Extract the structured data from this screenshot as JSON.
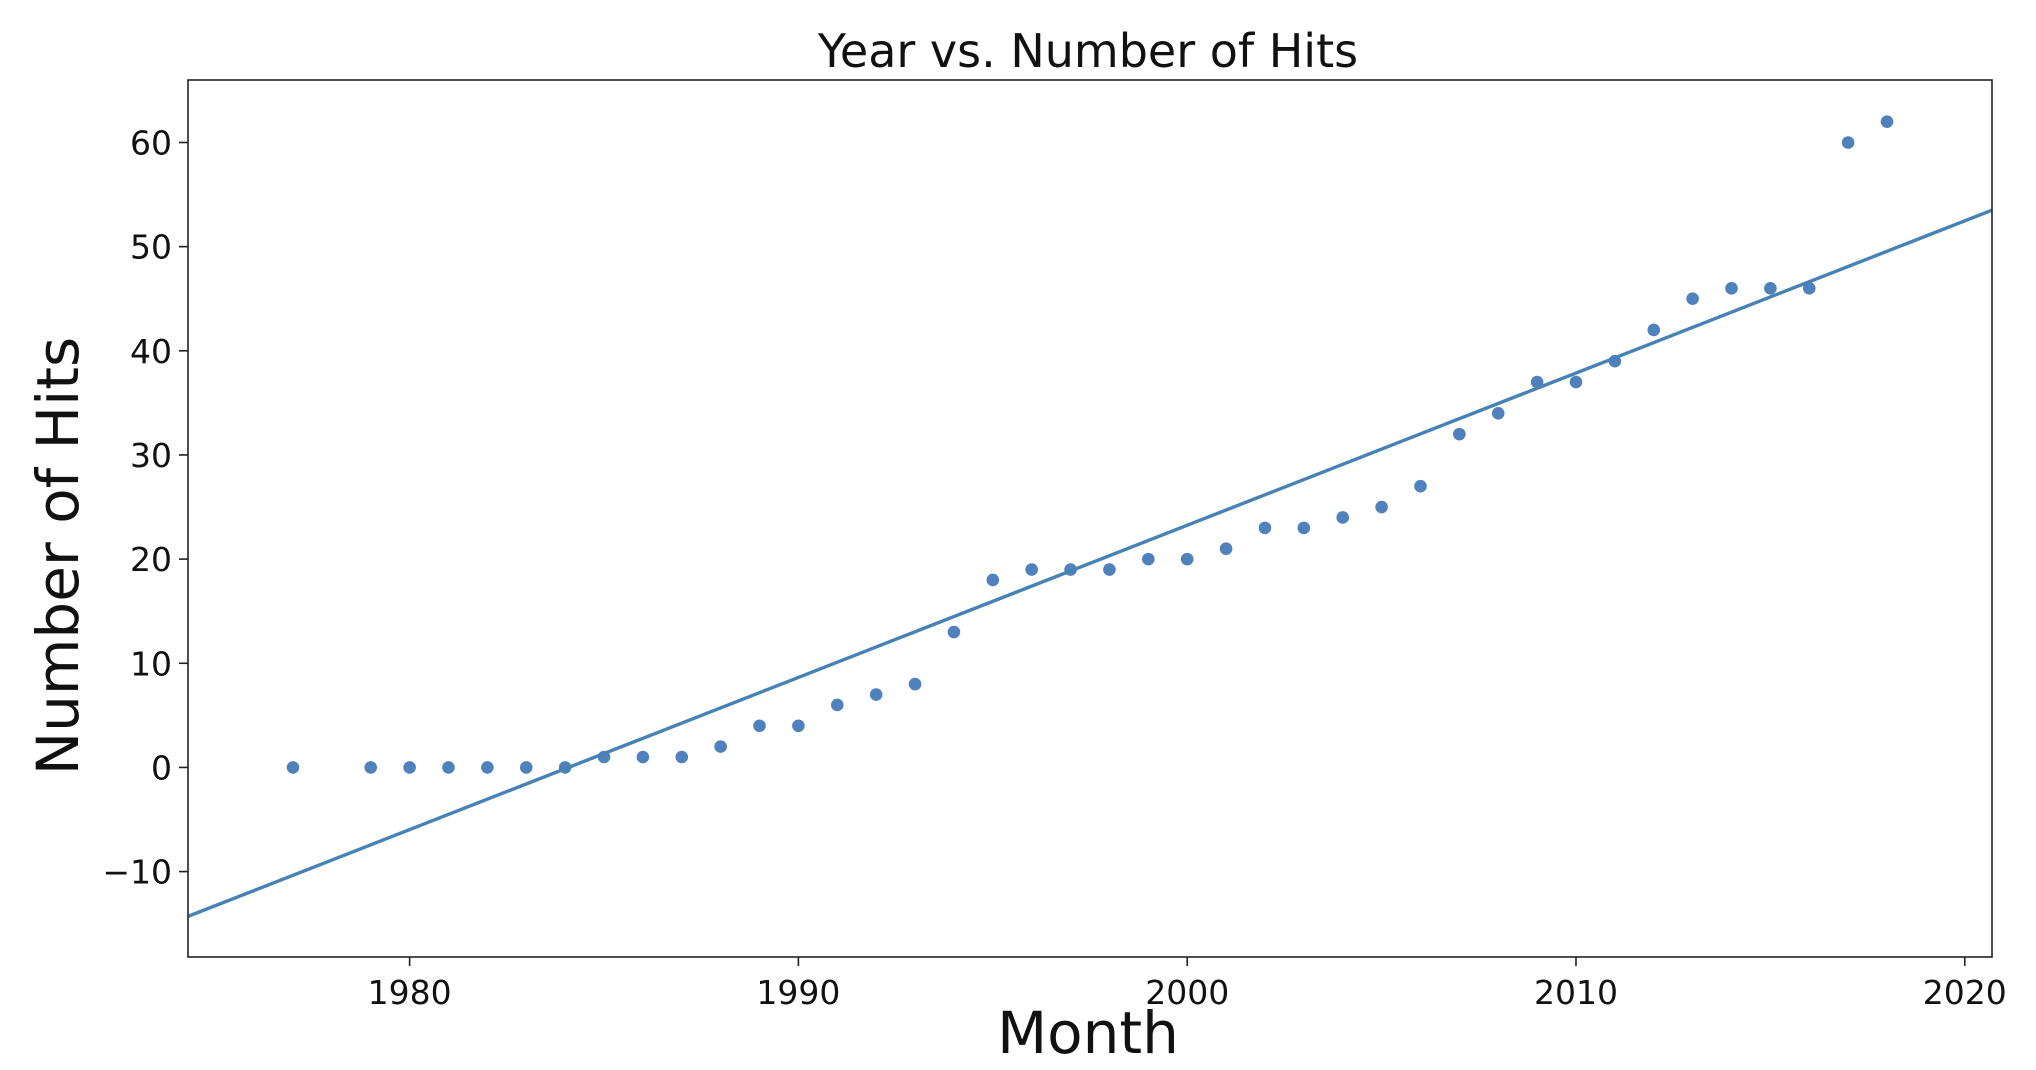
{
  "chart_data": {
    "type": "scatter",
    "title": "Year vs. Number of Hits",
    "xlabel": "Month",
    "ylabel": "Number of Hits",
    "xlim": [
      1974.3,
      2020.7
    ],
    "ylim": [
      -18.2,
      66.0
    ],
    "xticks": [
      1980,
      1990,
      2000,
      2010,
      2020
    ],
    "yticks": [
      -10,
      0,
      10,
      20,
      30,
      40,
      50,
      60
    ],
    "tick_labels_x": [
      "1980",
      "1990",
      "2000",
      "2010",
      "2020"
    ],
    "tick_labels_y": [
      "−10",
      "0",
      "10",
      "20",
      "30",
      "40",
      "50",
      "60"
    ],
    "grid": false,
    "series": [
      {
        "type": "scatter",
        "color": "#4f81bd",
        "x": [
          1977,
          1979,
          1980,
          1981,
          1982,
          1983,
          1984,
          1985,
          1986,
          1987,
          1988,
          1989,
          1990,
          1991,
          1992,
          1993,
          1994,
          1995,
          1996,
          1997,
          1998,
          1999,
          2000,
          2001,
          2002,
          2003,
          2004,
          2005,
          2006,
          2007,
          2008,
          2009,
          2010,
          2011,
          2012,
          2013,
          2014,
          2015,
          2016,
          2017,
          2018
        ],
        "y": [
          0,
          0,
          0,
          0,
          0,
          0,
          0,
          1,
          1,
          1,
          2,
          4,
          4,
          6,
          7,
          8,
          13,
          18,
          19,
          19,
          19,
          20,
          20,
          21,
          23,
          23,
          24,
          25,
          27,
          32,
          34,
          37,
          37,
          39,
          42,
          45,
          46,
          46,
          46,
          60,
          62
        ]
      },
      {
        "type": "line",
        "color": "#4682b4",
        "x": [
          1974.3,
          2020.7
        ],
        "y": [
          -14.3,
          53.5
        ]
      }
    ]
  }
}
